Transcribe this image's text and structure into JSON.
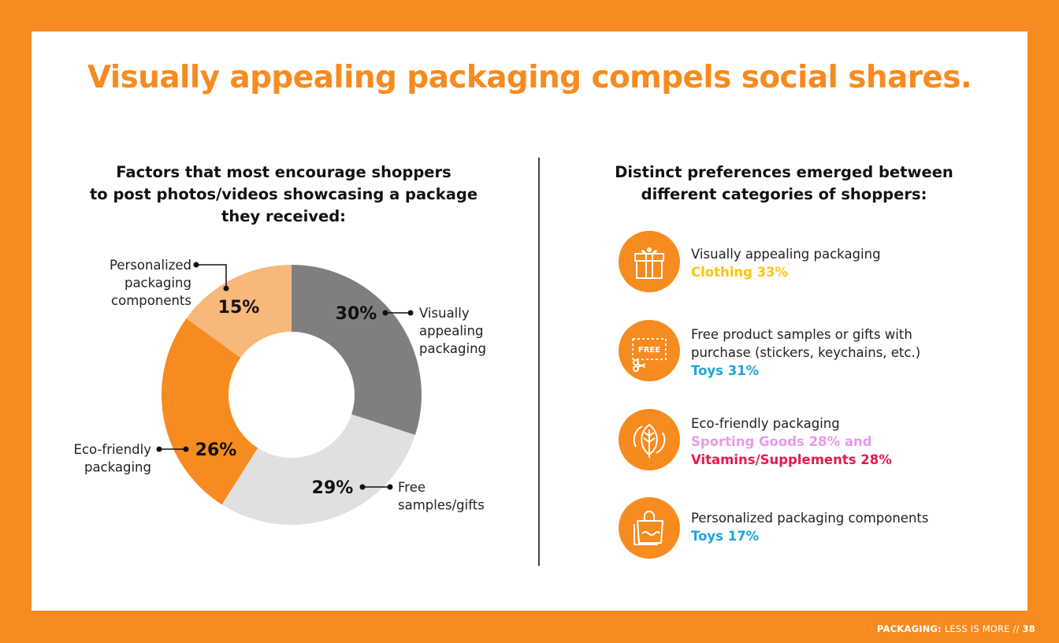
{
  "title": "Visually appealing packaging compels social shares.",
  "chart_heading_lines": [
    "Factors that most encourage shoppers",
    "to post photos/videos showcasing a package",
    "they received:"
  ],
  "chart_data": {
    "type": "pie",
    "donut": true,
    "slices": [
      {
        "label_lines": [
          "Visually",
          "appealing",
          "packaging"
        ],
        "value": 30,
        "value_label": "30%",
        "color": "#7F7F7F"
      },
      {
        "label_lines": [
          "Free",
          "samples/gifts"
        ],
        "value": 29,
        "value_label": "29%",
        "color": "#E0E0E0"
      },
      {
        "label_lines": [
          "Eco-friendly",
          "packaging"
        ],
        "value": 26,
        "value_label": "26%",
        "color": "#F68B1F"
      },
      {
        "label_lines": [
          "Personalized",
          "packaging",
          "components"
        ],
        "value": 15,
        "value_label": "15%",
        "color": "#F8B87A"
      }
    ]
  },
  "preferences": {
    "heading_lines": [
      "Distinct preferences emerged between",
      "different categories of shoppers:"
    ],
    "items": [
      {
        "icon": "gift-box-icon",
        "lines": [
          "Visually appealing packaging"
        ],
        "highlights": [
          {
            "text": "Clothing 33%",
            "color": "#FFC20E"
          }
        ]
      },
      {
        "icon": "free-coupon-icon",
        "lines": [
          "Free product samples or gifts with",
          "purchase (stickers, keychains, etc.)"
        ],
        "highlights": [
          {
            "text": "Toys 31%",
            "color": "#1BA5E0"
          }
        ]
      },
      {
        "icon": "eco-leaf-icon",
        "lines": [
          "Eco-friendly packaging"
        ],
        "highlights": [
          {
            "text": "Sporting Goods 28% and",
            "color": "#E89BE6"
          },
          {
            "text": "Vitamins/Supplements 28%",
            "color": "#E8194F"
          }
        ]
      },
      {
        "icon": "shopping-bag-icon",
        "lines": [
          "Personalized packaging components"
        ],
        "highlights": [
          {
            "text": "Toys 17%",
            "color": "#1BA5E0"
          }
        ]
      }
    ]
  },
  "footer": {
    "section": "PACKAGING:",
    "subtitle": "LESS IS MORE //",
    "page": "38"
  },
  "colors": {
    "accent": "#F68B1F",
    "background": "#FFFFFF"
  }
}
